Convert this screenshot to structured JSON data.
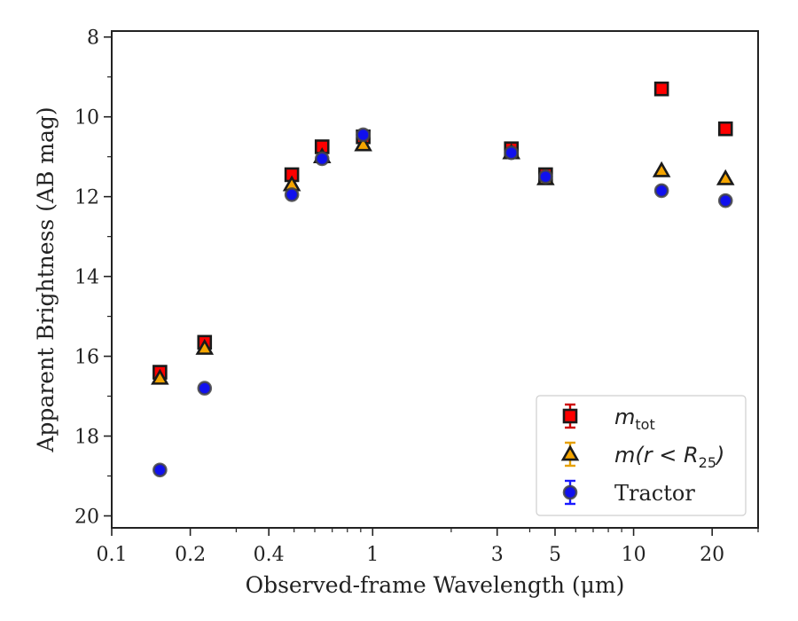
{
  "chart_data": {
    "type": "scatter",
    "xlabel": "Observed-frame Wavelength (μm)",
    "ylabel": "Apparent Brightness (AB mag)",
    "x_scale": "log",
    "xlim": [
      0.1,
      30
    ],
    "ylim": [
      20.3,
      7.85
    ],
    "y_inverted": true,
    "grid": false,
    "legend_position": "bottom-right",
    "x_ticks": [
      {
        "value": 0.1,
        "label": "0.1"
      },
      {
        "value": 0.2,
        "label": "0.2"
      },
      {
        "value": 0.4,
        "label": "0.4"
      },
      {
        "value": 1,
        "label": "1"
      },
      {
        "value": 3,
        "label": "3"
      },
      {
        "value": 5,
        "label": "5"
      },
      {
        "value": 10,
        "label": "10"
      },
      {
        "value": 20,
        "label": "20"
      }
    ],
    "y_ticks": [
      {
        "value": 8,
        "label": "8"
      },
      {
        "value": 10,
        "label": "10"
      },
      {
        "value": 12,
        "label": "12"
      },
      {
        "value": 14,
        "label": "14"
      },
      {
        "value": 16,
        "label": "16"
      },
      {
        "value": 18,
        "label": "18"
      },
      {
        "value": 20,
        "label": "20"
      }
    ],
    "series": [
      {
        "name": "m_tot",
        "legend_main": "m",
        "legend_sub": "tot",
        "marker": "square",
        "color": "#ff0000",
        "error_color": "#cc0000",
        "x": [
          0.153,
          0.227,
          0.49,
          0.64,
          0.92,
          3.4,
          4.6,
          12.8,
          22.5
        ],
        "y": [
          16.4,
          15.65,
          11.45,
          10.75,
          10.5,
          10.8,
          11.45,
          9.3,
          10.3
        ]
      },
      {
        "name": "m(r < R25)",
        "legend_main": "m(r < R",
        "legend_sub": "25",
        "legend_tail": ")",
        "marker": "triangle",
        "color": "#f5a500",
        "error_color": "#e6a000",
        "x": [
          0.153,
          0.227,
          0.49,
          0.64,
          0.92,
          3.4,
          4.6,
          12.8,
          22.5
        ],
        "y": [
          16.55,
          15.8,
          11.7,
          11.0,
          10.7,
          10.9,
          11.55,
          11.35,
          11.55
        ]
      },
      {
        "name": "Tractor",
        "legend_main": "Tractor",
        "marker": "circle",
        "color": "#1010ee",
        "error_color": "#1a1aff",
        "x": [
          0.153,
          0.227,
          0.49,
          0.64,
          0.92,
          3.4,
          4.6,
          12.8,
          22.5
        ],
        "y": [
          18.85,
          16.8,
          11.95,
          11.05,
          10.45,
          10.9,
          11.5,
          11.85,
          12.1
        ]
      }
    ]
  }
}
